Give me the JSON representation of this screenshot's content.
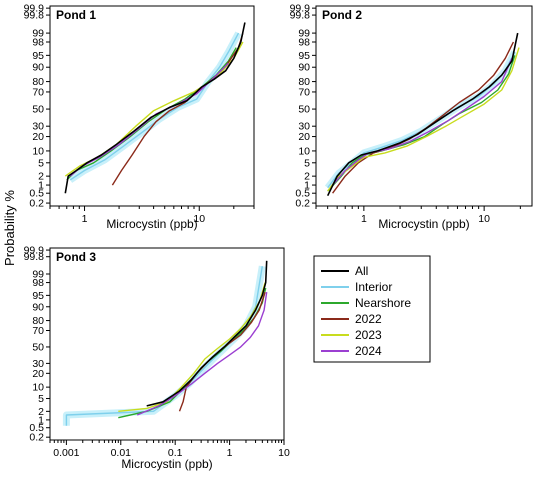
{
  "figure": {
    "ylabel": "Probability %",
    "colors": {
      "All": "#000000",
      "Interior": "#7fd0ec",
      "Nearshore": "#2ca82c",
      "2022": "#8b2a1a",
      "2023": "#c8dc1e",
      "2024": "#9b3fd1",
      "band": "#c8f0fa"
    }
  },
  "legend": {
    "entries": [
      {
        "label": "All",
        "color": "#000000"
      },
      {
        "label": "Interior",
        "color": "#7fd0ec"
      },
      {
        "label": "Nearshore",
        "color": "#2ca82c"
      },
      {
        "label": "2022",
        "color": "#8b2a1a"
      },
      {
        "label": "2023",
        "color": "#c8dc1e"
      },
      {
        "label": "2024",
        "color": "#9b3fd1"
      }
    ]
  },
  "chart_data": [
    {
      "type": "line",
      "title": "Pond 1",
      "xlabel": "Microcystin (ppb)",
      "ylabel": "Probability %",
      "x_scale": "log",
      "y_scale": "probability",
      "xlim": [
        0.5,
        30
      ],
      "x_ticks": [
        1,
        10
      ],
      "x_tick_labels": [
        "1",
        "10"
      ],
      "y_ticks": [
        0.2,
        0.5,
        1,
        2,
        5,
        10,
        20,
        30,
        50,
        70,
        80,
        90,
        95,
        98,
        99,
        99.8,
        99.9
      ],
      "y_tick_labels": [
        "0.2",
        "0.5",
        "1",
        "2",
        "5",
        "10",
        "20",
        "30",
        "50",
        "70",
        "80",
        "90",
        "95",
        "98",
        "99",
        "99.8",
        "99.9"
      ],
      "series": [
        {
          "name": "All",
          "x": [
            0.68,
            0.72,
            0.85,
            1.05,
            1.4,
            1.9,
            2.7,
            3.8,
            5.5,
            7.8,
            10.5,
            13.5,
            17,
            20,
            23,
            25
          ],
          "y": [
            0.5,
            2,
            3,
            5,
            8,
            14,
            25,
            40,
            52,
            60,
            75,
            82,
            88,
            94,
            98,
            99.6
          ]
        },
        {
          "name": "Interior",
          "x": [
            0.75,
            1.0,
            1.5,
            2.2,
            3.2,
            4.5,
            6.5,
            9.5,
            12,
            15,
            18,
            22
          ],
          "y": [
            1.5,
            3,
            6,
            13,
            24,
            38,
            52,
            62,
            80,
            90,
            96,
            99
          ]
        },
        {
          "name": "Nearshore",
          "x": [
            0.7,
            0.85,
            1.2,
            1.7,
            2.5,
            3.6,
            5.2,
            7.5,
            10.5,
            14,
            18,
            21
          ],
          "y": [
            1.5,
            3,
            5,
            10,
            20,
            35,
            50,
            62,
            75,
            85,
            93,
            97
          ]
        },
        {
          "name": "2022",
          "x": [
            1.75,
            2.1,
            2.6,
            3.3,
            4.2,
            5.5,
            7.5,
            10,
            13,
            16,
            19,
            22,
            24
          ],
          "y": [
            1,
            3,
            8,
            20,
            35,
            48,
            58,
            72,
            82,
            88,
            94,
            97,
            99
          ]
        },
        {
          "name": "2023",
          "x": [
            0.68,
            0.9,
            1.3,
            1.9,
            2.8,
            4.0,
            6.0,
            9.0,
            12.5,
            16,
            20,
            24
          ],
          "y": [
            2,
            4,
            7,
            14,
            30,
            48,
            60,
            70,
            80,
            88,
            94,
            98
          ]
        },
        {
          "name": "2024",
          "x": [
            0.75,
            0.95,
            1.35,
            2.0,
            3.0,
            4.2,
            6.5,
            9.5,
            13,
            18
          ],
          "y": [
            2,
            4,
            7,
            14,
            28,
            44,
            56,
            68,
            82,
            92
          ]
        }
      ]
    },
    {
      "type": "line",
      "title": "Pond 2",
      "xlabel": "Microcystin (ppb)",
      "ylabel": "",
      "x_scale": "log",
      "y_scale": "probability",
      "xlim": [
        0.4,
        25
      ],
      "x_ticks": [
        1,
        10
      ],
      "x_tick_labels": [
        "1",
        "10"
      ],
      "y_ticks": [
        0.2,
        0.5,
        1,
        2,
        5,
        10,
        20,
        30,
        50,
        70,
        80,
        90,
        95,
        98,
        99,
        99.8,
        99.9
      ],
      "y_tick_labels": [
        "0.2",
        "0.5",
        "1",
        "2",
        "5",
        "10",
        "20",
        "30",
        "50",
        "70",
        "80",
        "90",
        "95",
        "98",
        "99",
        "99.8",
        "99.9"
      ],
      "series": [
        {
          "name": "All",
          "x": [
            0.5,
            0.6,
            0.75,
            0.95,
            1.3,
            2.0,
            2.8,
            4.0,
            5.5,
            8,
            11,
            14,
            17,
            19
          ],
          "y": [
            0.4,
            2,
            5,
            8,
            10,
            15,
            22,
            35,
            48,
            62,
            75,
            85,
            93,
            99
          ]
        },
        {
          "name": "Interior",
          "x": [
            0.5,
            0.62,
            0.8,
            1.0,
            1.4,
            2.1,
            3.0,
            4.3,
            6,
            9,
            12,
            15,
            18
          ],
          "y": [
            0.8,
            2.5,
            5,
            9,
            12,
            17,
            25,
            38,
            52,
            65,
            78,
            88,
            96
          ]
        },
        {
          "name": "Nearshore",
          "x": [
            0.5,
            0.65,
            0.8,
            1.0,
            1.4,
            2.2,
            3.2,
            4.5,
            6.3,
            9.5,
            13,
            16,
            18
          ],
          "y": [
            0.6,
            2,
            5,
            8,
            10,
            14,
            20,
            32,
            45,
            58,
            72,
            86,
            95
          ]
        },
        {
          "name": "2022",
          "x": [
            0.55,
            0.7,
            0.9,
            1.2,
            1.7,
            2.4,
            3.3,
            4.5,
            6.2,
            9,
            12,
            15,
            17.5
          ],
          "y": [
            0.5,
            2,
            5,
            9,
            12,
            18,
            28,
            42,
            58,
            72,
            85,
            94,
            98
          ]
        },
        {
          "name": "2023",
          "x": [
            0.5,
            0.62,
            0.8,
            1.0,
            1.5,
            2.3,
            3.3,
            4.8,
            6.8,
            10,
            14,
            17,
            19.5
          ],
          "y": [
            0.6,
            2,
            4,
            7,
            9,
            13,
            20,
            30,
            42,
            56,
            72,
            88,
            97
          ]
        },
        {
          "name": "2024",
          "x": [
            0.55,
            0.7,
            0.9,
            1.1,
            1.6,
            2.4,
            3.4,
            5.0,
            7.0,
            10,
            14,
            17
          ],
          "y": [
            1,
            3,
            6,
            9,
            11,
            16,
            24,
            36,
            50,
            65,
            80,
            94
          ]
        }
      ]
    },
    {
      "type": "line",
      "title": "Pond 3",
      "xlabel": "Microcystin (ppb)",
      "ylabel": "",
      "x_scale": "log",
      "y_scale": "probability",
      "xlim": [
        0.0005,
        10
      ],
      "x_ticks": [
        0.001,
        0.01,
        0.1,
        1,
        10
      ],
      "x_tick_labels": [
        "0.001",
        "0.01",
        "0.1",
        "1",
        "10"
      ],
      "y_ticks": [
        0.2,
        0.5,
        1,
        2,
        5,
        10,
        20,
        30,
        50,
        70,
        80,
        90,
        95,
        98,
        99,
        99.8,
        99.9
      ],
      "y_tick_labels": [
        "0.2",
        "0.5",
        "1",
        "2",
        "5",
        "10",
        "20",
        "30",
        "50",
        "70",
        "80",
        "90",
        "95",
        "98",
        "99",
        "99.8",
        "99.9"
      ],
      "series": [
        {
          "name": "All",
          "x": [
            0.03,
            0.06,
            0.12,
            0.2,
            0.3,
            0.5,
            0.8,
            1.2,
            2.0,
            3.0,
            4.0,
            4.6,
            4.8
          ],
          "y": [
            3,
            4,
            8,
            15,
            25,
            38,
            50,
            62,
            75,
            88,
            95,
            98,
            99.7
          ]
        },
        {
          "name": "Interior",
          "x": [
            0.001,
            0.001,
            0.04,
            0.1,
            0.18,
            0.3,
            0.5,
            0.8,
            1.3,
            2.0,
            3.0,
            4.0
          ],
          "y": [
            0.6,
            1.5,
            2,
            6,
            12,
            22,
            35,
            48,
            62,
            75,
            90,
            99.5
          ]
        },
        {
          "name": "Nearshore",
          "x": [
            0.009,
            0.03,
            0.08,
            0.15,
            0.25,
            0.4,
            0.7,
            1.1,
            1.8,
            2.8,
            4.0,
            4.6
          ],
          "y": [
            1.2,
            2,
            4,
            10,
            20,
            32,
            45,
            58,
            70,
            82,
            92,
            97
          ]
        },
        {
          "name": "2022",
          "x": [
            0.12,
            0.14,
            0.16,
            0.25,
            0.4,
            0.65,
            1.0,
            1.6,
            2.5,
            3.5,
            4.5
          ],
          "y": [
            2,
            4,
            10,
            20,
            32,
            45,
            55,
            65,
            78,
            88,
            96
          ]
        },
        {
          "name": "2023",
          "x": [
            0.009,
            0.03,
            0.07,
            0.13,
            0.22,
            0.35,
            0.6,
            1.0,
            1.6,
            2.5,
            3.6,
            4.5
          ],
          "y": [
            2,
            2.5,
            4,
            10,
            20,
            35,
            48,
            60,
            72,
            84,
            93,
            98
          ]
        },
        {
          "name": "2024",
          "x": [
            0.02,
            0.05,
            0.1,
            0.2,
            0.35,
            0.6,
            1.0,
            1.6,
            2.4,
            3.4,
            4.3,
            4.8
          ],
          "y": [
            1.5,
            3,
            6,
            12,
            20,
            30,
            40,
            50,
            62,
            75,
            88,
            96
          ]
        }
      ]
    }
  ]
}
